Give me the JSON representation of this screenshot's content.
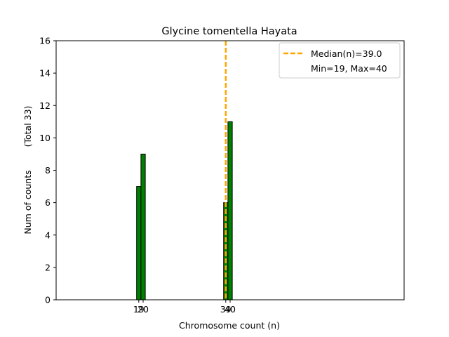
{
  "chart_data": {
    "type": "bar",
    "title": "Glycine tomentella Hayata",
    "xlabel": "Chromosome count (n)",
    "ylabel_main": "Num of counts",
    "ylabel_total": "(Total 33)",
    "xlim": [
      0,
      80
    ],
    "ylim": [
      0,
      16
    ],
    "yticks": [
      0,
      2,
      4,
      6,
      8,
      10,
      12,
      14,
      16
    ],
    "xticks": [
      19,
      20,
      39,
      40
    ],
    "bars": [
      {
        "x": 19,
        "value": 7
      },
      {
        "x": 20,
        "value": 9
      },
      {
        "x": 39,
        "value": 6
      },
      {
        "x": 40,
        "value": 11
      }
    ],
    "median": 39.0,
    "legend": {
      "position": "top-right",
      "entries": [
        "Median(n)=39.0",
        "Min=19, Max=40"
      ]
    },
    "colors": {
      "bar": "#008000",
      "bar_edge": "#000000",
      "median": "#FFA500"
    }
  }
}
